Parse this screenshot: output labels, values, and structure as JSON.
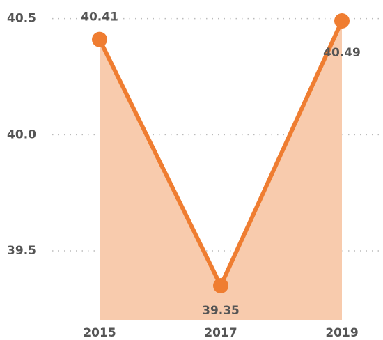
{
  "chart_data": {
    "type": "area",
    "categories": [
      "2015",
      "2017",
      "2019"
    ],
    "values": [
      40.41,
      39.35,
      40.49
    ],
    "color": "#ef7d31",
    "fill": "#f8cbad",
    "ylim": [
      39.2,
      40.58
    ],
    "yticks": [
      39.5,
      {
        "value": 40,
        "label": "40.0"
      },
      40.5
    ],
    "grid": true
  }
}
